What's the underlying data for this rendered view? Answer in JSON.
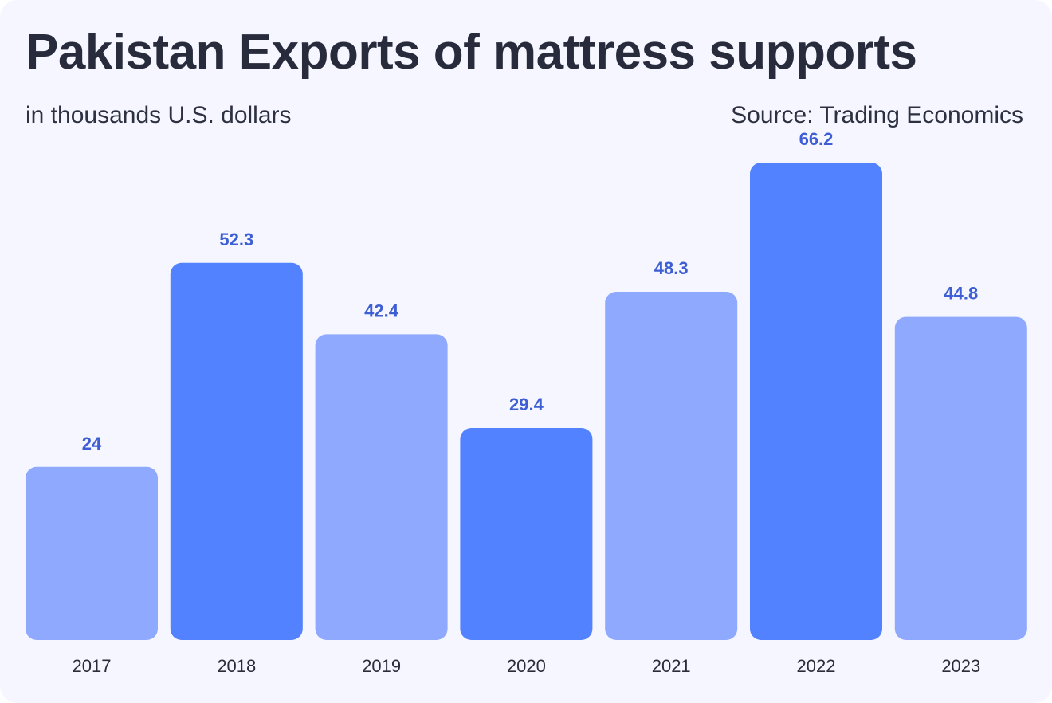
{
  "header": {
    "title": "Pakistan Exports of mattress supports",
    "subtitle": "in thousands U.S. dollars",
    "source": "Source: Trading Economics"
  },
  "colors": {
    "background": "#f5f6ff",
    "bar_dark": "#5282ff",
    "bar_light": "#8fa9ff",
    "value_label": "#3e5fd4"
  },
  "chart_data": {
    "type": "bar",
    "categories": [
      "2017",
      "2018",
      "2019",
      "2020",
      "2021",
      "2022",
      "2023"
    ],
    "values": [
      24,
      52.3,
      42.4,
      29.4,
      48.3,
      66.2,
      44.8
    ],
    "value_labels": [
      "24",
      "52.3",
      "42.4",
      "29.4",
      "48.3",
      "66.2",
      "44.8"
    ],
    "bar_shades": [
      "light",
      "dark",
      "light",
      "dark",
      "light",
      "dark",
      "light"
    ],
    "title": "Pakistan Exports of mattress supports",
    "subtitle": "in thousands U.S. dollars",
    "xlabel": "",
    "ylabel": "",
    "ylim": [
      0,
      66.2
    ],
    "grid": false
  }
}
